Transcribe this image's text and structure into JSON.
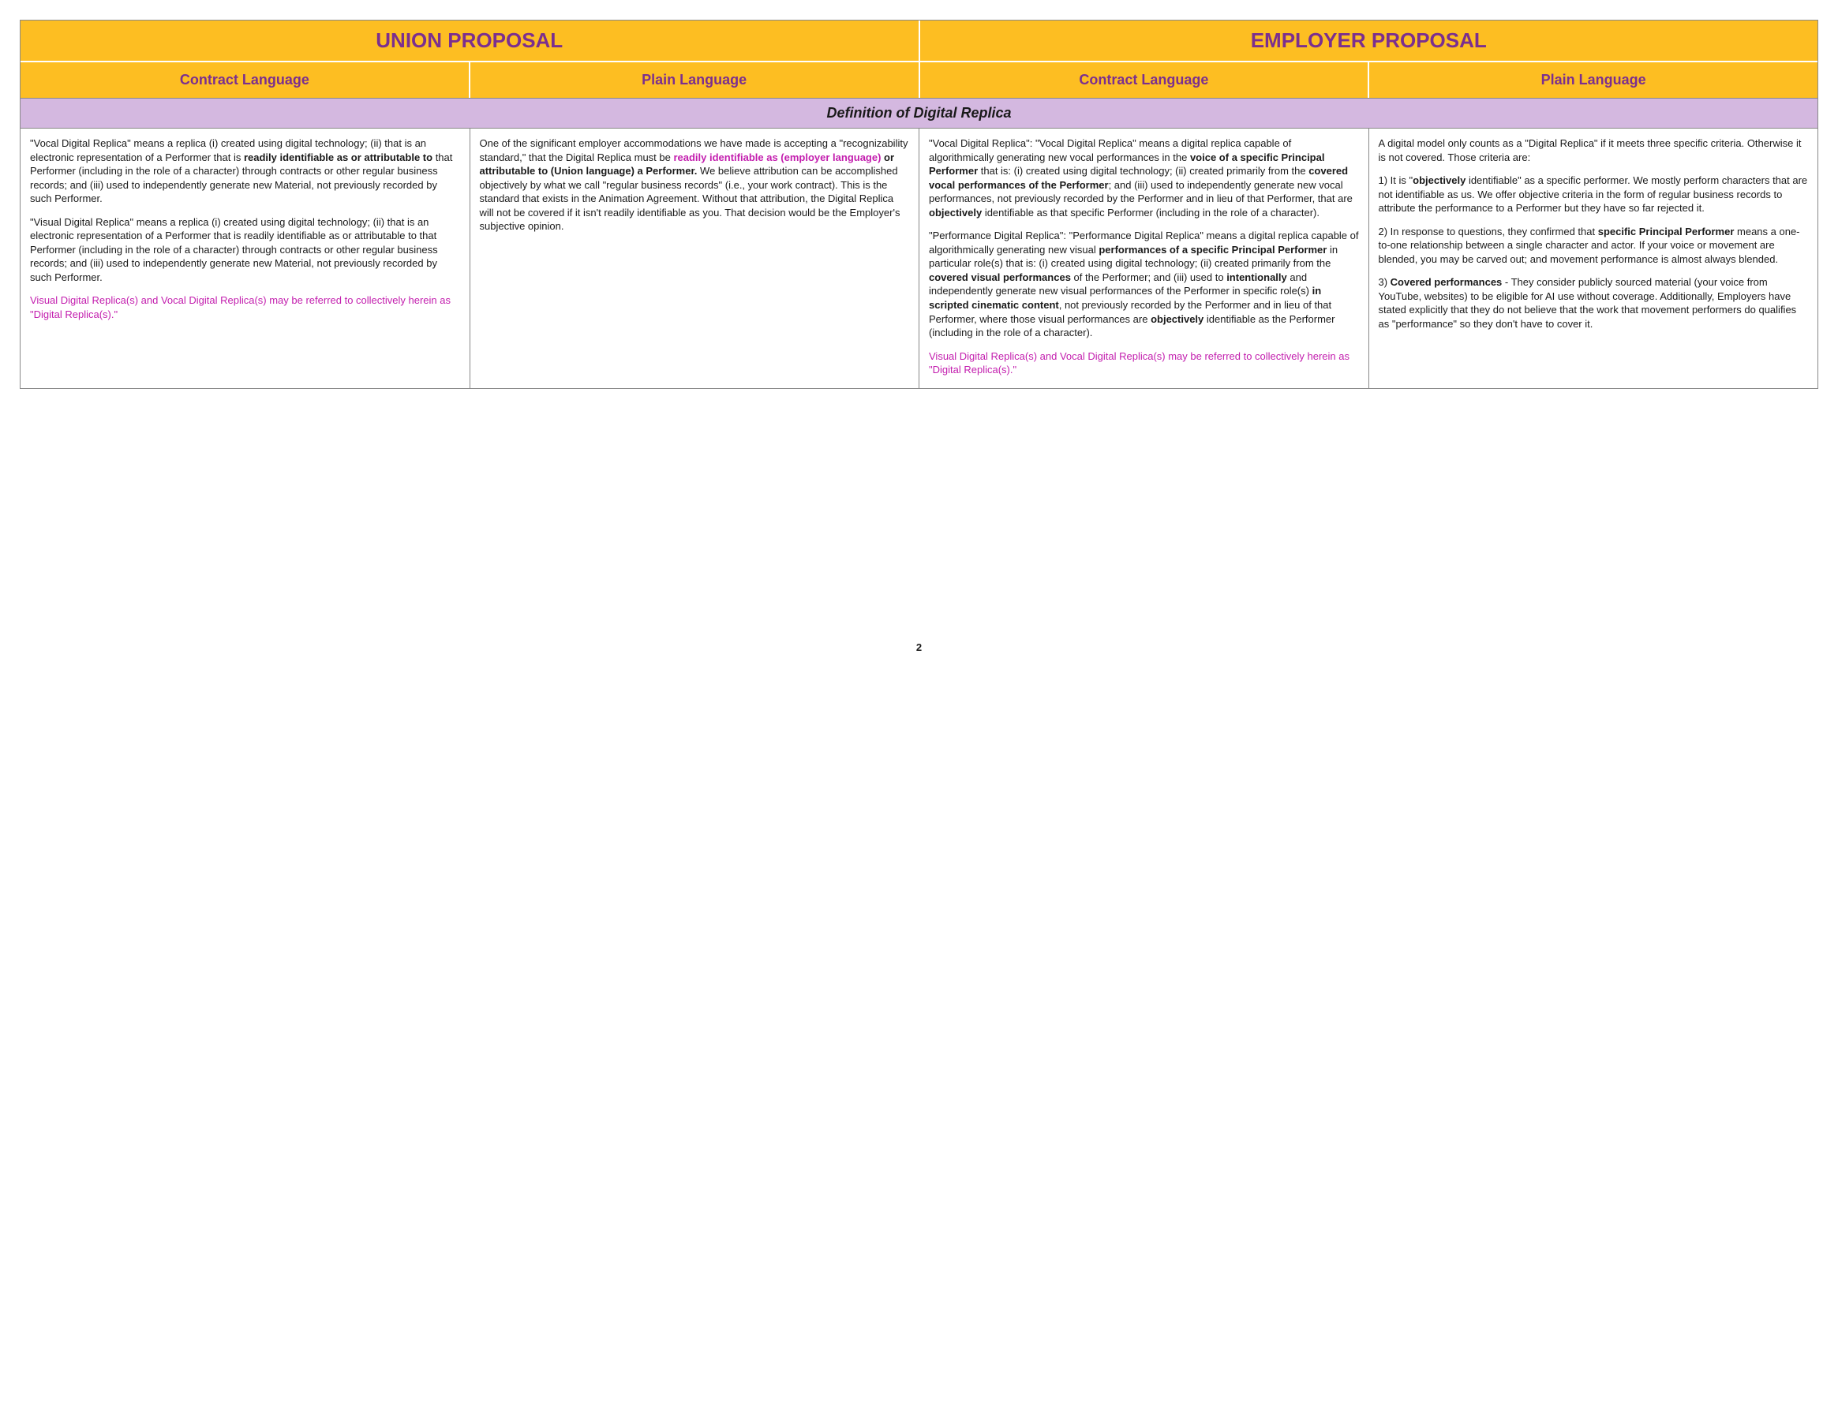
{
  "colors": {
    "header_bg": "#fdbe22",
    "header_text": "#7b2f8f",
    "section_bg": "#d4b8e0",
    "magenta": "#c31eae",
    "border": "#888888",
    "body_text": "#1a1a1a",
    "page_bg": "#ffffff"
  },
  "typography": {
    "top_header_fontsize": 26,
    "sub_header_fontsize": 18,
    "section_fontsize": 18,
    "body_fontsize": 13,
    "body_lineheight": 1.35
  },
  "headers": {
    "top_left": "UNION PROPOSAL",
    "top_right": "EMPLOYER PROPOSAL",
    "sub": [
      "Contract Language",
      "Plain Language",
      "Contract Language",
      "Plain Language"
    ]
  },
  "section_title": "Definition of Digital Replica",
  "cells": {
    "union_contract": {
      "p1_a": "\"Vocal Digital Replica\" means a replica (i) created using digital technology; (ii) that is an electronic representation of a Performer that is ",
      "p1_bold": "readily identifiable as or attributable to",
      "p1_b": " that Performer (including in the role of a character) through contracts or other regular business records; and (iii) used to independently generate new Material, not previously recorded by such Performer.",
      "p2": "\"Visual Digital Replica\" means a replica (i) created using digital technology; (ii) that is an electronic representation of a Performer that is readily identifiable as or attributable to that Performer (including in the role of a character) through contracts or other regular business records; and (iii) used to independently generate new Material, not previously recorded by such Performer.",
      "p3_mag": "Visual Digital Replica(s) and Vocal Digital Replica(s) may be referred to collectively herein as \"Digital Replica(s).\""
    },
    "union_plain": {
      "p1_a": "One of the significant employer accommodations we have made is accepting a \"recognizability standard,\" that the Digital Replica must be ",
      "p1_mag": "readily identifiable as (employer language)",
      "p1_bold1": " or attributable to (Union language) a Performer.",
      "p1_b": " We believe attribution can be accomplished objectively by what we call \"regular business records\" (i.e., your work contract). This is the standard that exists in the Animation Agreement. Without that attribution, the Digital Replica will not be covered if it isn't readily identifiable as you. That decision would be the Employer's subjective opinion."
    },
    "employer_contract": {
      "p1_a": "\"Vocal Digital Replica\": \"Vocal Digital Replica\" means a digital replica capable of algorithmically generating new vocal performances in the ",
      "p1_b1": "voice of a specific Principal Performer",
      "p1_b": " that is: (i) created using digital technology; (ii) created primarily from the ",
      "p1_b2": "covered vocal performances of the Performer",
      "p1_c": "; and (iii) used to independently generate new vocal performances, not previously recorded by the Performer and in lieu of that Performer, that are ",
      "p1_b3": "objectively",
      "p1_d": " identifiable as that specific Performer (including in the role of a character).",
      "p2_a": "\"Performance Digital Replica\": \"Performance Digital Replica\" means a digital replica capable of algorithmically generating new visual ",
      "p2_b1": "performances of a specific Principal Performer",
      "p2_b": " in particular role(s) that is: (i) created using digital technology; (ii) created primarily from the ",
      "p2_b2": "covered visual performances",
      "p2_c": " of the Performer; and (iii) used to ",
      "p2_b3": "intentionally",
      "p2_d": " and independently generate new visual performances of the Performer in specific role(s) ",
      "p2_b4": "in scripted cinematic content",
      "p2_e": ", not previously recorded by the Performer and in lieu of that Performer, where those visual performances are ",
      "p2_b5": "objectively",
      "p2_f": " identifiable as the Performer (including in the role of a character).",
      "p3_mag": " Visual Digital Replica(s) and Vocal Digital Replica(s) may be referred to collectively herein as \"Digital Replica(s).\""
    },
    "employer_plain": {
      "p1": "A digital model only counts as a \"Digital Replica\" if it meets three specific criteria. Otherwise it is not covered. Those criteria are:",
      "p2_a": "1) It is \"",
      "p2_b1": "objectively",
      "p2_b": " identifiable\" as a specific performer. We mostly perform characters that are not identifiable as us. We offer objective criteria in the form of regular business records to attribute the performance to a Performer but they have so far rejected it.",
      "p3_a": "2) In response to questions, they confirmed that ",
      "p3_b1": "specific Principal Performer",
      "p3_b": " means a one-to-one relationship between a single character and actor. If your voice or movement are blended, you may be carved out; and movement performance is almost always blended.",
      "p4_a": "3) ",
      "p4_b1": "Covered performances",
      "p4_b": " - They consider publicly sourced material (your voice from YouTube, websites) to be eligible for AI use without coverage. Additionally, Employers have stated explicitly that they do not believe that the work that movement performers do qualifies as \"performance\" so they don't have to cover it."
    }
  },
  "page_number": "2"
}
